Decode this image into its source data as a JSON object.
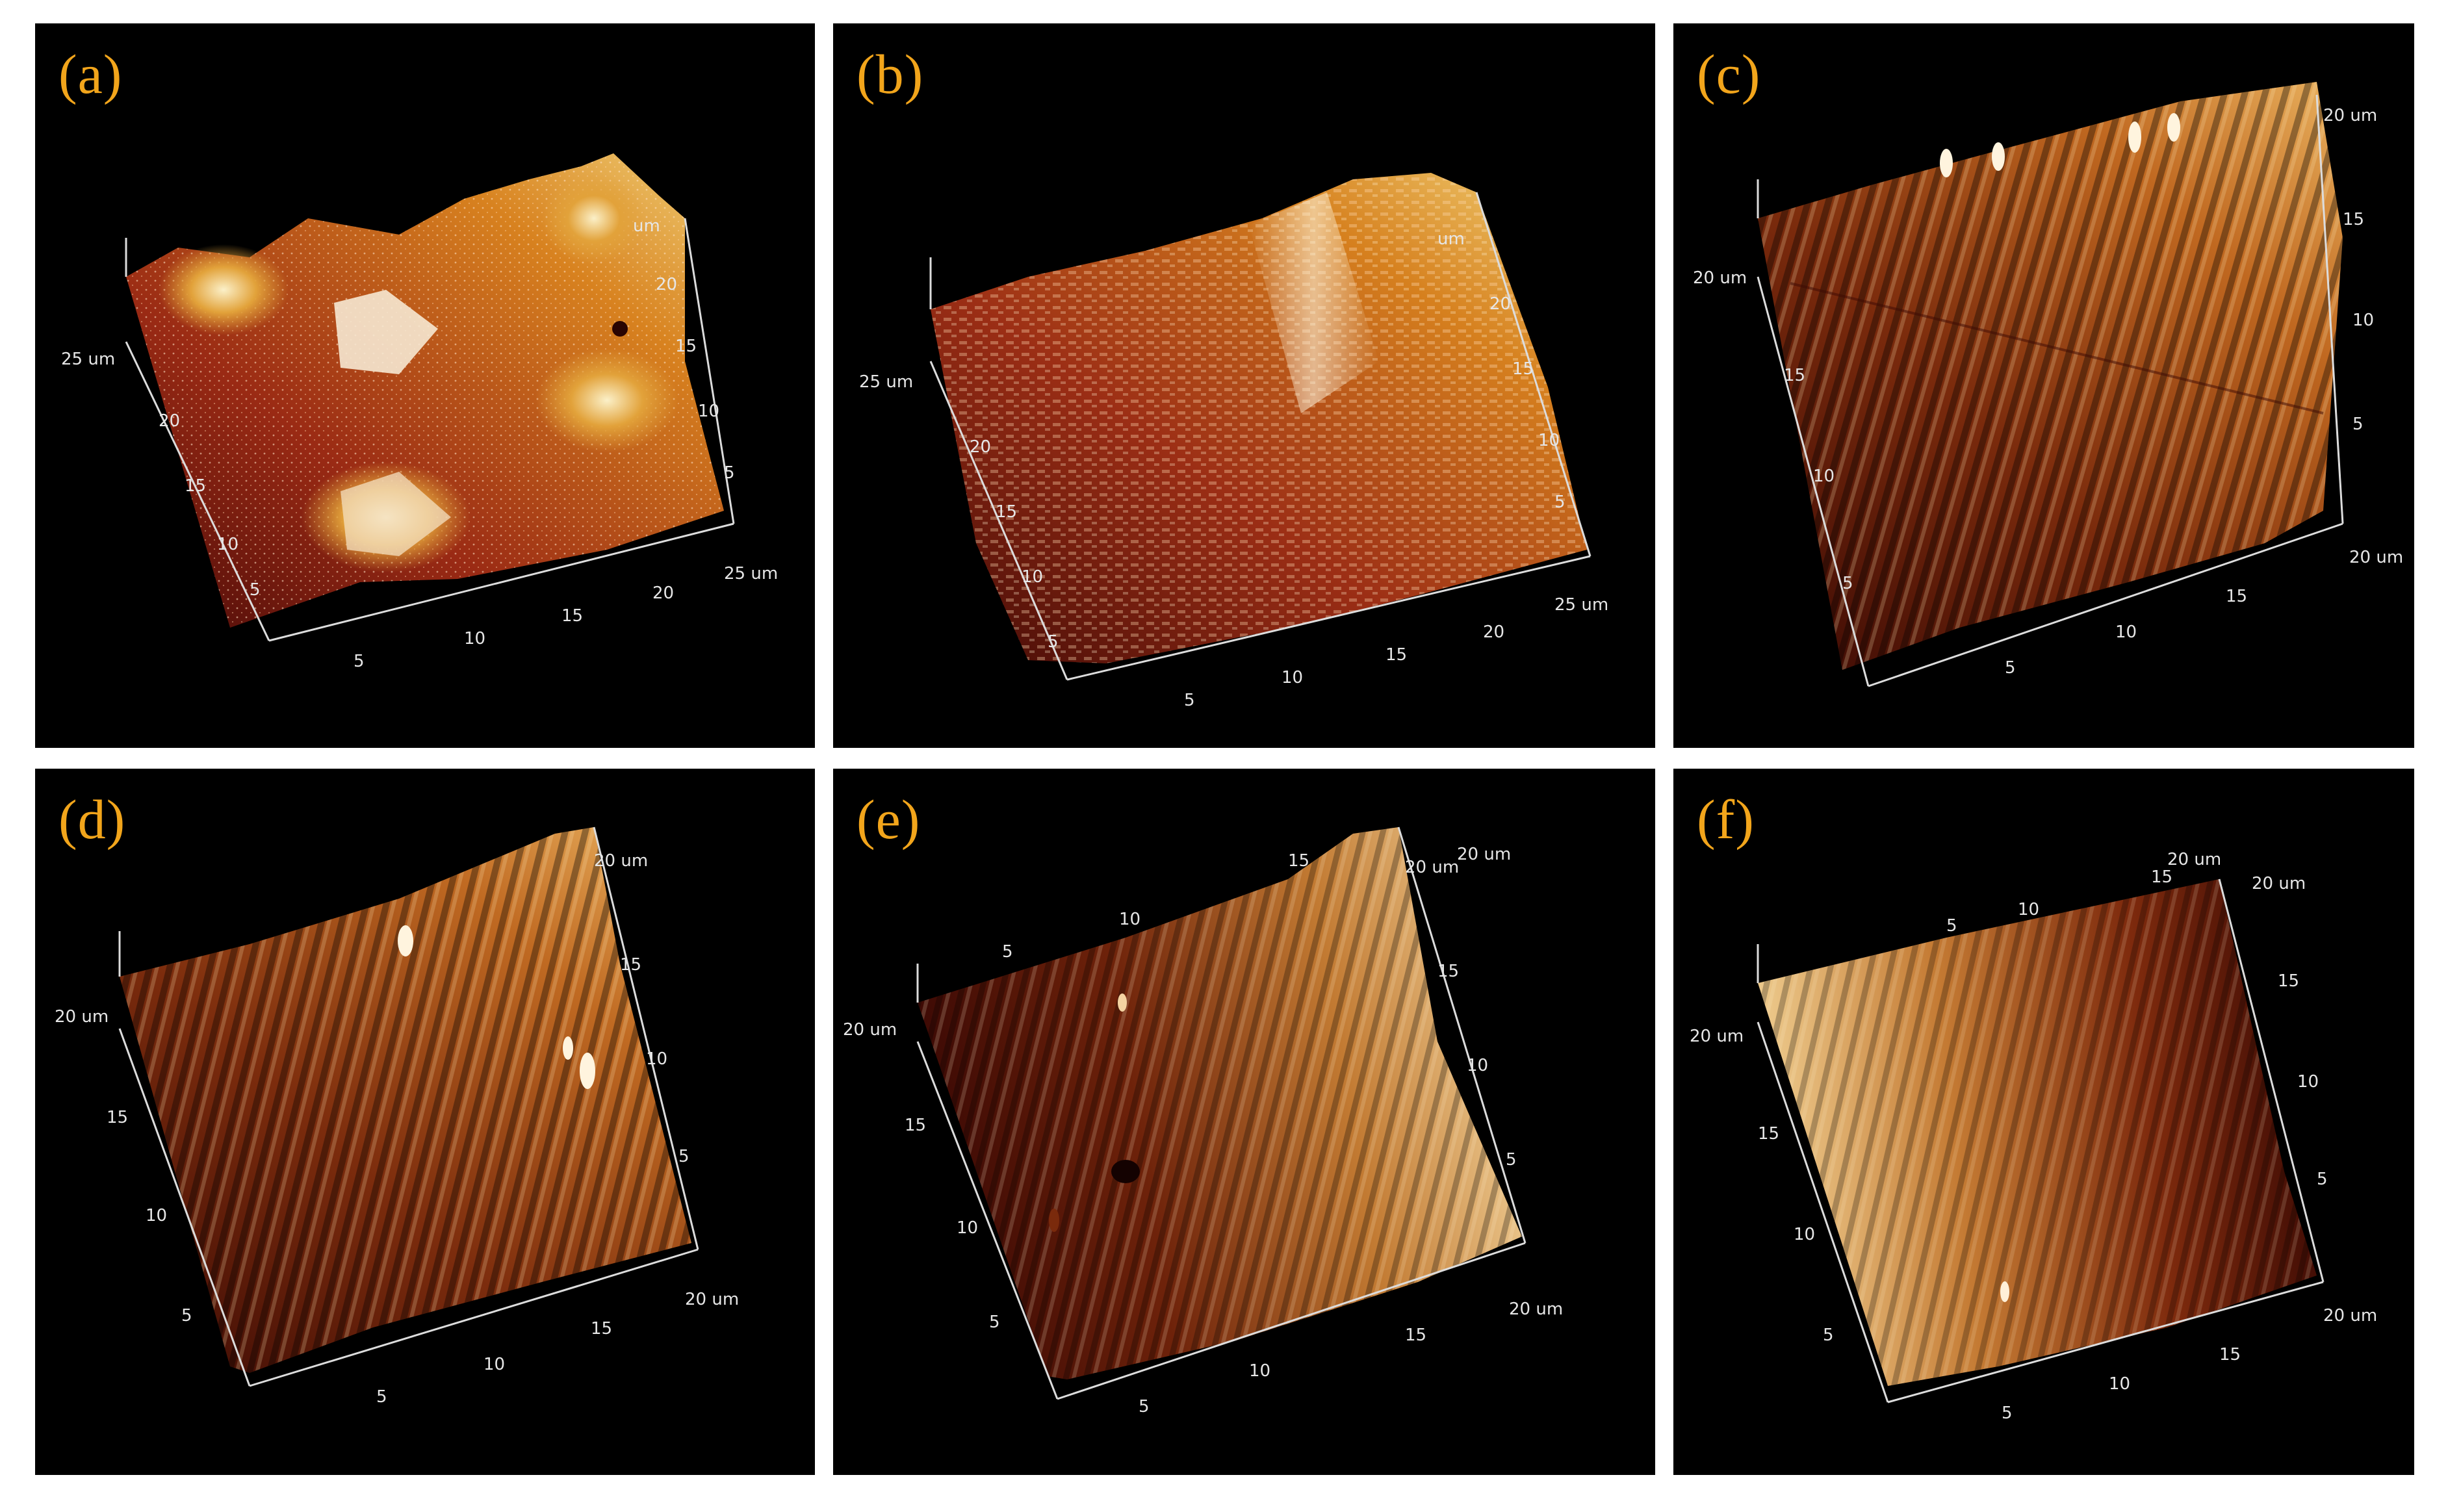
{
  "figure": {
    "background": "#000000",
    "label_color": "#f2a51b",
    "axis_color": "#dcdcdc",
    "panels": [
      {
        "id": "a",
        "label": "(a)",
        "colors": [
          "#4a0a08",
          "#9a2a14",
          "#d8821f",
          "#f1d37a"
        ],
        "front_ticks": [
          "5",
          "10",
          "15",
          "20",
          "25 um"
        ],
        "left_ticks": [
          "5",
          "10",
          "15",
          "20",
          "25 um"
        ],
        "right_ticks": [
          "5",
          "10",
          "15",
          "20",
          "um"
        ]
      },
      {
        "id": "b",
        "label": "(b)",
        "colors": [
          "#420a06",
          "#9c2e15",
          "#d6801e",
          "#f3d67a"
        ],
        "front_ticks": [
          "5",
          "10",
          "15",
          "20",
          "25 um"
        ],
        "left_ticks": [
          "5",
          "10",
          "15",
          "20",
          "25 um"
        ],
        "right_ticks": [
          "5",
          "10",
          "15",
          "20",
          "um"
        ]
      },
      {
        "id": "c",
        "label": "(c)",
        "colors": [
          "#3a0904",
          "#7a2a0c",
          "#c06820",
          "#e9b15e"
        ],
        "front_ticks": [
          "5",
          "10",
          "15",
          "20 um"
        ],
        "left_ticks": [
          "5",
          "10",
          "15",
          "20 um"
        ],
        "right_ticks": [
          "5",
          "10",
          "15",
          "20 um"
        ]
      },
      {
        "id": "d",
        "label": "(d)",
        "colors": [
          "#3a0904",
          "#7c2c0d",
          "#c06a22",
          "#eeb865"
        ],
        "front_ticks": [
          "5",
          "10",
          "15",
          "20 um"
        ],
        "left_ticks": [
          "5",
          "10",
          "15",
          "20 um"
        ],
        "right_ticks": [
          "5",
          "10",
          "15",
          "20 um"
        ]
      },
      {
        "id": "e",
        "label": "(e)",
        "colors": [
          "#3a0804",
          "#6e220a",
          "#c27a32",
          "#f1d29a"
        ],
        "front_ticks": [
          "5",
          "10",
          "15",
          "20 um"
        ],
        "left_ticks": [
          "5",
          "10",
          "15",
          "20 um"
        ],
        "right_ticks": [
          "5",
          "10",
          "15",
          "20 um"
        ],
        "back_ticks": [
          "5",
          "10",
          "15",
          "20 um"
        ]
      },
      {
        "id": "f",
        "label": "(f)",
        "colors": [
          "#f0d093",
          "#c47a33",
          "#7e2a0d",
          "#3c0a04"
        ],
        "front_ticks": [
          "5",
          "10",
          "15",
          "20 um"
        ],
        "left_ticks": [
          "5",
          "10",
          "15",
          "20 um"
        ],
        "right_ticks": [
          "5",
          "10",
          "15",
          "20 um"
        ],
        "back_ticks": [
          "5",
          "10",
          "15",
          "20 um"
        ]
      }
    ]
  }
}
